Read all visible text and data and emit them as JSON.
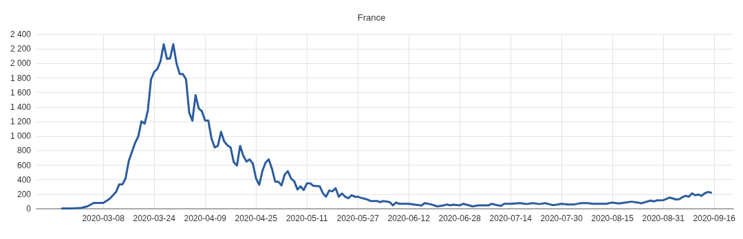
{
  "chart_data": {
    "type": "line",
    "title": "France",
    "x": [
      "2020-02-24",
      "2020-02-27",
      "2020-03-01",
      "2020-03-03",
      "2020-03-05",
      "2020-03-08",
      "2020-03-10",
      "2020-03-12",
      "2020-03-13",
      "2020-03-14",
      "2020-03-15",
      "2020-03-16",
      "2020-03-18",
      "2020-03-19",
      "2020-03-20",
      "2020-03-21",
      "2020-03-22",
      "2020-03-23",
      "2020-03-24",
      "2020-03-25",
      "2020-03-26",
      "2020-03-27",
      "2020-03-28",
      "2020-03-29",
      "2020-03-30",
      "2020-03-31",
      "2020-04-01",
      "2020-04-02",
      "2020-04-03",
      "2020-04-04",
      "2020-04-05",
      "2020-04-06",
      "2020-04-07",
      "2020-04-08",
      "2020-04-09",
      "2020-04-10",
      "2020-04-11",
      "2020-04-12",
      "2020-04-13",
      "2020-04-14",
      "2020-04-15",
      "2020-04-16",
      "2020-04-17",
      "2020-04-18",
      "2020-04-19",
      "2020-04-20",
      "2020-04-21",
      "2020-04-22",
      "2020-04-23",
      "2020-04-24",
      "2020-04-25",
      "2020-04-26",
      "2020-04-27",
      "2020-04-28",
      "2020-04-29",
      "2020-04-30",
      "2020-05-01",
      "2020-05-02",
      "2020-05-03",
      "2020-05-04",
      "2020-05-05",
      "2020-05-06",
      "2020-05-07",
      "2020-05-08",
      "2020-05-09",
      "2020-05-10",
      "2020-05-11",
      "2020-05-12",
      "2020-05-13",
      "2020-05-15",
      "2020-05-16",
      "2020-05-17",
      "2020-05-18",
      "2020-05-19",
      "2020-05-20",
      "2020-05-21",
      "2020-05-22",
      "2020-05-23",
      "2020-05-24",
      "2020-05-25",
      "2020-05-26",
      "2020-05-27",
      "2020-05-28",
      "2020-05-30",
      "2020-05-31",
      "2020-06-02",
      "2020-06-03",
      "2020-06-04",
      "2020-06-06",
      "2020-06-07",
      "2020-06-08",
      "2020-06-09",
      "2020-06-12",
      "2020-06-14",
      "2020-06-16",
      "2020-06-17",
      "2020-06-19",
      "2020-06-21",
      "2020-06-23",
      "2020-06-24",
      "2020-06-25",
      "2020-06-26",
      "2020-06-28",
      "2020-06-29",
      "2020-07-01",
      "2020-07-02",
      "2020-07-04",
      "2020-07-07",
      "2020-07-08",
      "2020-07-10",
      "2020-07-11",
      "2020-07-12",
      "2020-07-14",
      "2020-07-17",
      "2020-07-19",
      "2020-07-21",
      "2020-07-23",
      "2020-07-25",
      "2020-07-27",
      "2020-07-28",
      "2020-07-30",
      "2020-08-01",
      "2020-08-03",
      "2020-08-05",
      "2020-08-07",
      "2020-08-09",
      "2020-08-13",
      "2020-08-15",
      "2020-08-17",
      "2020-08-19",
      "2020-08-21",
      "2020-08-23",
      "2020-08-24",
      "2020-08-27",
      "2020-08-28",
      "2020-08-29",
      "2020-08-31",
      "2020-09-01",
      "2020-09-02",
      "2020-09-03",
      "2020-09-04",
      "2020-09-05",
      "2020-09-06",
      "2020-09-07",
      "2020-09-08",
      "2020-09-09",
      "2020-09-10",
      "2020-09-11",
      "2020-09-12",
      "2020-09-13",
      "2020-09-14",
      "2020-09-15"
    ],
    "series": [
      {
        "color": "#2b5c9e",
        "values": [
          5,
          5,
          12,
          33,
          80,
          80,
          136,
          231,
          335,
          335,
          418,
          657,
          907,
          996,
          1203,
          1170,
          1351,
          1781,
          1884,
          1924,
          2033,
          2264,
          2062,
          2070,
          2264,
          2003,
          1855,
          1855,
          1781,
          1324,
          1212,
          1564,
          1380,
          1340,
          1215,
          1215,
          968,
          844,
          865,
          1058,
          926,
          874,
          844,
          640,
          596,
          865,
          730,
          650,
          680,
          620,
          418,
          330,
          520,
          635,
          680,
          551,
          374,
          374,
          320,
          470,
          517,
          418,
          380,
          266,
          308,
          258,
          350,
          350,
          317,
          310,
          215,
          166,
          252,
          240,
          284,
          166,
          210,
          166,
          145,
          187,
          166,
          166,
          150,
          127,
          107,
          107,
          92,
          107,
          92,
          47,
          86,
          68,
          68,
          57,
          45,
          78,
          60,
          33,
          47,
          60,
          47,
          57,
          47,
          68,
          47,
          33,
          47,
          47,
          68,
          47,
          40,
          68,
          68,
          77,
          65,
          77,
          65,
          77,
          53,
          53,
          68,
          60,
          60,
          77,
          77,
          68,
          68,
          86,
          74,
          86,
          98,
          86,
          74,
          113,
          101,
          116,
          119,
          136,
          154,
          142,
          128,
          133,
          160,
          178,
          166,
          213,
          187,
          196,
          178,
          213,
          231,
          222
        ]
      }
    ],
    "xlim": [
      "2020-02-16",
      "2020-09-22"
    ],
    "xticks": [
      "2020-03-08",
      "2020-03-24",
      "2020-04-09",
      "2020-04-25",
      "2020-05-11",
      "2020-05-27",
      "2020-06-12",
      "2020-06-28",
      "2020-07-14",
      "2020-07-30",
      "2020-08-15",
      "2020-08-31",
      "2020-09-16"
    ],
    "ylim": [
      0,
      2400
    ],
    "yticks": [
      0,
      200,
      400,
      600,
      800,
      {
        "value": 1000,
        "label": "1 000"
      },
      {
        "value": 1200,
        "label": "1 200"
      },
      {
        "value": 1400,
        "label": "1 400"
      },
      {
        "value": 1600,
        "label": "1 600"
      },
      {
        "value": 1800,
        "label": "1 800"
      },
      {
        "value": 2000,
        "label": "2 000"
      },
      {
        "value": 2200,
        "label": "2 200"
      },
      {
        "value": 2400,
        "label": "2 400"
      }
    ],
    "grid": true,
    "marker": "none",
    "line_style": "solid"
  }
}
